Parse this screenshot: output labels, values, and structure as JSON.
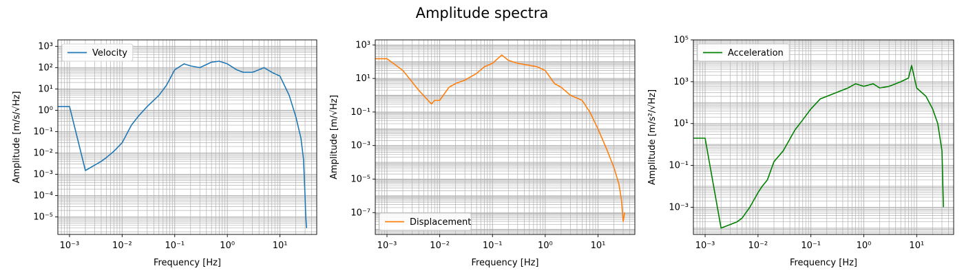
{
  "figure": {
    "title": "Amplitude spectra"
  },
  "chart_data": [
    {
      "type": "line",
      "xlabel": "Frequency [Hz]",
      "ylabel": "Amplitude [m/s/√Hz]",
      "xscale": "log",
      "yscale": "log",
      "xlim": [
        0.0006,
        50
      ],
      "ylim": [
        1.5e-06,
        2000
      ],
      "x_ticks": [
        0.001,
        0.01,
        0.1,
        1,
        10
      ],
      "x_tick_labels": [
        "10⁻³",
        "10⁻²",
        "10⁻¹",
        "10⁰",
        "10¹"
      ],
      "y_ticks": [
        1e-05,
        0.0001,
        0.001,
        0.01,
        0.1,
        1,
        10,
        100,
        1000
      ],
      "y_tick_labels": [
        "10⁻⁵",
        "10⁻⁴",
        "10⁻³",
        "10⁻²",
        "10⁻¹",
        "10⁰",
        "10¹",
        "10²",
        "10³"
      ],
      "grid": "major and minor",
      "legend": "upper-left",
      "color": "#1f77b4",
      "series": [
        {
          "name": "Velocity",
          "x": [
            0.0006,
            0.001,
            0.002,
            0.004,
            0.005,
            0.007,
            0.01,
            0.015,
            0.02,
            0.03,
            0.05,
            0.07,
            0.1,
            0.15,
            0.2,
            0.3,
            0.5,
            0.7,
            1,
            1.5,
            2,
            3,
            5,
            7,
            10,
            15,
            20,
            25,
            28,
            30,
            31,
            32
          ],
          "y": [
            1.5,
            1.5,
            0.0015,
            0.004,
            0.006,
            0.012,
            0.03,
            0.2,
            0.5,
            1.5,
            5,
            15,
            80,
            150,
            120,
            100,
            180,
            200,
            150,
            80,
            60,
            60,
            100,
            60,
            40,
            5,
            0.5,
            0.05,
            0.005,
            0.0001,
            1e-05,
            3e-06
          ]
        }
      ]
    },
    {
      "type": "line",
      "xlabel": "Frequency [Hz]",
      "ylabel": "Amplitude [m/√Hz]",
      "xscale": "log",
      "yscale": "log",
      "xlim": [
        0.0006,
        50
      ],
      "ylim": [
        5e-09,
        2000
      ],
      "x_ticks": [
        0.001,
        0.01,
        0.1,
        1,
        10
      ],
      "x_tick_labels": [
        "10⁻³",
        "10⁻²",
        "10⁻¹",
        "10⁰",
        "10¹"
      ],
      "y_ticks": [
        1e-07,
        1e-05,
        0.001,
        0.1,
        10,
        1000
      ],
      "y_tick_labels": [
        "10⁻⁷",
        "10⁻⁵",
        "10⁻³",
        "10⁻¹",
        "10¹",
        "10³"
      ],
      "grid": "major and minor",
      "legend": "lower-left",
      "color": "#ff7f0e",
      "series": [
        {
          "name": "Displacement",
          "x": [
            0.0006,
            0.001,
            0.002,
            0.004,
            0.006,
            0.007,
            0.008,
            0.01,
            0.015,
            0.02,
            0.03,
            0.05,
            0.07,
            0.1,
            0.15,
            0.2,
            0.3,
            0.5,
            0.7,
            1,
            1.5,
            2,
            3,
            5,
            7,
            10,
            15,
            20,
            25,
            28,
            30,
            32
          ],
          "y": [
            150,
            150,
            30,
            2,
            0.5,
            0.3,
            0.5,
            0.5,
            3,
            5,
            8,
            20,
            50,
            80,
            250,
            120,
            80,
            60,
            50,
            30,
            5,
            3,
            1,
            0.5,
            0.1,
            0.01,
            0.0005,
            5e-05,
            5e-06,
            5e-07,
            3e-08,
            1e-07
          ]
        }
      ]
    },
    {
      "type": "line",
      "xlabel": "Frequency [Hz]",
      "ylabel": "Amplitude [m/s²/√Hz]",
      "xscale": "log",
      "yscale": "log",
      "xlim": [
        0.0006,
        50
      ],
      "ylim": [
        5e-05,
        100000
      ],
      "x_ticks": [
        0.001,
        0.01,
        0.1,
        1,
        10
      ],
      "x_tick_labels": [
        "10⁻³",
        "10⁻²",
        "10⁻¹",
        "10⁰",
        "10¹"
      ],
      "y_ticks": [
        0.001,
        0.1,
        10,
        1000,
        100000
      ],
      "y_tick_labels": [
        "10⁻³",
        "10⁻¹",
        "10¹",
        "10³",
        "10⁵"
      ],
      "grid": "major and minor",
      "legend": "upper-left",
      "color": "#008000",
      "series": [
        {
          "name": "Acceleration",
          "x": [
            0.0006,
            0.001,
            0.002,
            0.003,
            0.004,
            0.005,
            0.007,
            0.01,
            0.012,
            0.015,
            0.02,
            0.03,
            0.05,
            0.07,
            0.1,
            0.15,
            0.2,
            0.3,
            0.5,
            0.7,
            1,
            1.5,
            2,
            3,
            5,
            7,
            8,
            10,
            15,
            20,
            25,
            30,
            32
          ],
          "y": [
            2,
            2,
            0.0001,
            0.00015,
            0.0002,
            0.0003,
            0.001,
            0.005,
            0.01,
            0.02,
            0.15,
            0.5,
            5,
            15,
            50,
            150,
            200,
            300,
            500,
            800,
            600,
            800,
            500,
            600,
            1000,
            1500,
            6000,
            500,
            200,
            50,
            10,
            0.5,
            0.001
          ]
        }
      ]
    }
  ]
}
